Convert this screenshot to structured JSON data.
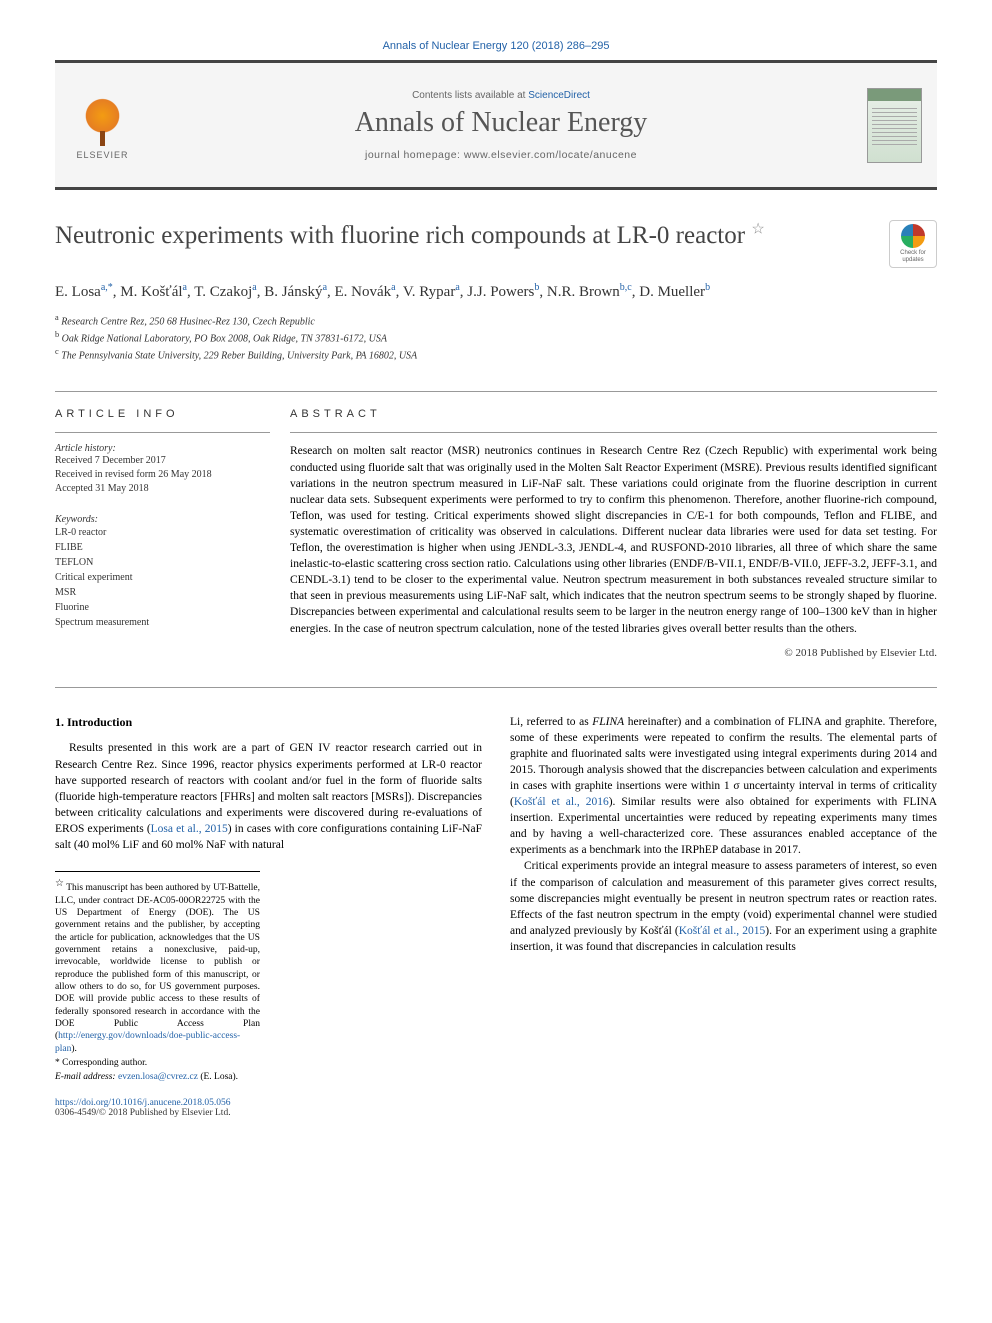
{
  "citation": "Annals of Nuclear Energy 120 (2018) 286–295",
  "header": {
    "contents_prefix": "Contents lists available at ",
    "contents_link": "ScienceDirect",
    "journal": "Annals of Nuclear Energy",
    "homepage_prefix": "journal homepage: ",
    "homepage": "www.elsevier.com/locate/anucene",
    "publisher": "ELSEVIER"
  },
  "title": "Neutronic experiments with fluorine rich compounds at LR-0 reactor",
  "title_star": "☆",
  "updates_label": "Check for updates",
  "authors_html": "E. Losa<sup>a,*</sup>, M. Košťál<sup>a</sup>, T. Czakoj<sup>a</sup>, B. Jánský<sup>a</sup>, E. Novák<sup>a</sup>, V. Rypar<sup>a</sup>, J.J. Powers<sup>b</sup>, N.R. Brown<sup>b,c</sup>, D. Mueller<sup>b</sup>",
  "affiliations": [
    {
      "sup": "a",
      "text": "Research Centre Rez, 250 68 Husinec-Rez 130, Czech Republic"
    },
    {
      "sup": "b",
      "text": "Oak Ridge National Laboratory, PO Box 2008, Oak Ridge, TN 37831-6172, USA"
    },
    {
      "sup": "c",
      "text": "The Pennsylvania State University, 229 Reber Building, University Park, PA 16802, USA"
    }
  ],
  "info_labels": {
    "article_info": "ARTICLE INFO",
    "abstract": "ABSTRACT"
  },
  "history": {
    "label": "Article history:",
    "items": [
      "Received 7 December 2017",
      "Received in revised form 26 May 2018",
      "Accepted 31 May 2018"
    ]
  },
  "keywords": {
    "label": "Keywords:",
    "items": [
      "LR-0 reactor",
      "FLIBE",
      "TEFLON",
      "Critical experiment",
      "MSR",
      "Fluorine",
      "Spectrum measurement"
    ]
  },
  "abstract": "Research on molten salt reactor (MSR) neutronics continues in Research Centre Rez (Czech Republic) with experimental work being conducted using fluoride salt that was originally used in the Molten Salt Reactor Experiment (MSRE). Previous results identified significant variations in the neutron spectrum measured in LiF-NaF salt. These variations could originate from the fluorine description in current nuclear data sets. Subsequent experiments were performed to try to confirm this phenomenon. Therefore, another fluorine-rich compound, Teflon, was used for testing. Critical experiments showed slight discrepancies in C/E-1 for both compounds, Teflon and FLIBE, and systematic overestimation of criticality was observed in calculations. Different nuclear data libraries were used for data set testing. For Teflon, the overestimation is higher when using JENDL-3.3, JENDL-4, and RUSFOND-2010 libraries, all three of which share the same inelastic-to-elastic scattering cross section ratio. Calculations using other libraries (ENDF/B-VII.1, ENDF/B-VII.0, JEFF-3.2, JEFF-3.1, and CENDL-3.1) tend to be closer to the experimental value. Neutron spectrum measurement in both substances revealed structure similar to that seen in previous measurements using LiF-NaF salt, which indicates that the neutron spectrum seems to be strongly shaped by fluorine. Discrepancies between experimental and calculational results seem to be larger in the neutron energy range of 100–1300 keV than in higher energies. In the case of neutron spectrum calculation, none of the tested libraries gives overall better results than the others.",
  "copyright": "© 2018 Published by Elsevier Ltd.",
  "section1": {
    "number": "1.",
    "title": "Introduction"
  },
  "body": {
    "col1_p1_a": "Results presented in this work are a part of GEN IV reactor research carried out in Research Centre Rez. Since 1996, reactor physics experiments performed at LR-0 reactor have supported research of reactors with coolant and/or fuel in the form of fluoride salts (fluoride high-temperature reactors [FHRs] and molten salt reactors [MSRs]). Discrepancies between criticality calculations and experiments were discovered during re-evaluations of EROS experiments (",
    "col1_p1_link1": "Losa et al., 2015",
    "col1_p1_b": ") in cases with core configurations containing LiF-NaF salt (40 mol% LiF and 60 mol% NaF with natural",
    "col2_p1_a": "Li, referred to as ",
    "col2_p1_em": "FLINA",
    "col2_p1_b": " hereinafter) and a combination of FLINA and graphite. Therefore, some of these experiments were repeated to confirm the results. The elemental parts of graphite and fluorinated salts were investigated using integral experiments during 2014 and 2015. Thorough analysis showed that the discrepancies between calculation and experiments in cases with graphite insertions were within 1 σ uncertainty interval in terms of criticality (",
    "col2_p1_link1": "Košťál et al., 2016",
    "col2_p1_c": "). Similar results were also obtained for experiments with FLINA insertion. Experimental uncertainties were reduced by repeating experiments many times and by having a well-characterized core. These assurances enabled acceptance of the experiments as a benchmark into the IRPhEP database in 2017.",
    "col2_p2_a": "Critical experiments provide an integral measure to assess parameters of interest, so even if the comparison of calculation and measurement of this parameter gives correct results, some discrepancies might eventually be present in neutron spectrum rates or reaction rates. Effects of the fast neutron spectrum in the empty (void) experimental channel were studied and analyzed previously by Košťál (",
    "col2_p2_link1": "Košťál et al., 2015",
    "col2_p2_b": "). For an experiment using a graphite insertion, it was found that discrepancies in calculation results"
  },
  "footnotes": {
    "star": "☆",
    "star_text_a": " This manuscript has been authored by UT-Battelle, LLC, under contract DE-AC05-00OR22725 with the US Department of Energy (DOE). The US government retains and the publisher, by accepting the article for publication, acknowledges that the US government retains a nonexclusive, paid-up, irrevocable, worldwide license to publish or reproduce the published form of this manuscript, or allow others to do so, for US government purposes. DOE will provide public access to these results of federally sponsored research in accordance with the DOE Public Access Plan (",
    "star_link": "http://energy.gov/downloads/doe-public-access-plan",
    "star_text_b": ").",
    "corr": "* Corresponding author.",
    "email_label": "E-mail address: ",
    "email": "evzen.losa@cvrez.cz",
    "email_who": " (E. Losa)."
  },
  "footer": {
    "doi": "https://doi.org/10.1016/j.anucene.2018.05.056",
    "issn": "0306-4549/© 2018 Published by Elsevier Ltd."
  },
  "colors": {
    "link": "#2362a8",
    "rule": "#444444",
    "text": "#000000"
  }
}
